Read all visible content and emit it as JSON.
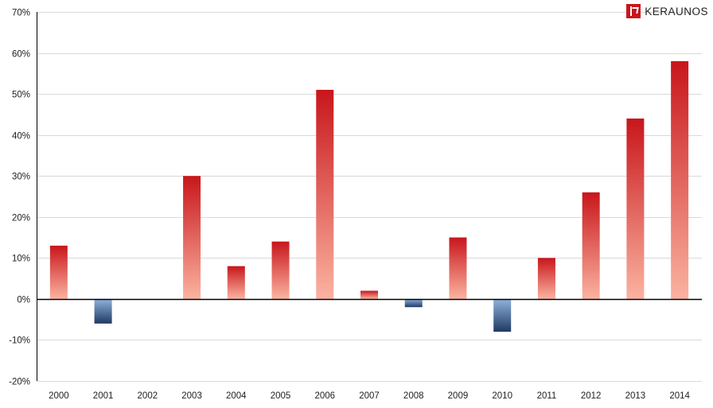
{
  "logo": {
    "text": "KERAUNOS"
  },
  "chart_data": {
    "type": "bar",
    "title": "",
    "xlabel": "",
    "ylabel": "",
    "categories": [
      "2000",
      "2001",
      "2002",
      "2003",
      "2004",
      "2005",
      "2006",
      "2007",
      "2008",
      "2009",
      "2010",
      "2011",
      "2012",
      "2013",
      "2014"
    ],
    "values": [
      13,
      -6,
      0,
      30,
      8,
      14,
      51,
      2,
      -2,
      15,
      -8,
      10,
      26,
      44,
      58
    ],
    "ylim": [
      -20,
      70
    ],
    "yticks": [
      -20,
      -10,
      0,
      10,
      20,
      30,
      40,
      50,
      60,
      70
    ],
    "ytick_labels": [
      "-20%",
      "-10%",
      "0%",
      "10%",
      "20%",
      "30%",
      "40%",
      "50%",
      "60%",
      "70%"
    ],
    "grid": true,
    "legend": "none",
    "colors": {
      "positive_top": "#c8161b",
      "positive_bottom": "#fbb3a1",
      "negative_top": "#8fb3de",
      "negative_bottom": "#1f3a63",
      "grid": "#d9d9d9",
      "axis": "#000000"
    }
  }
}
